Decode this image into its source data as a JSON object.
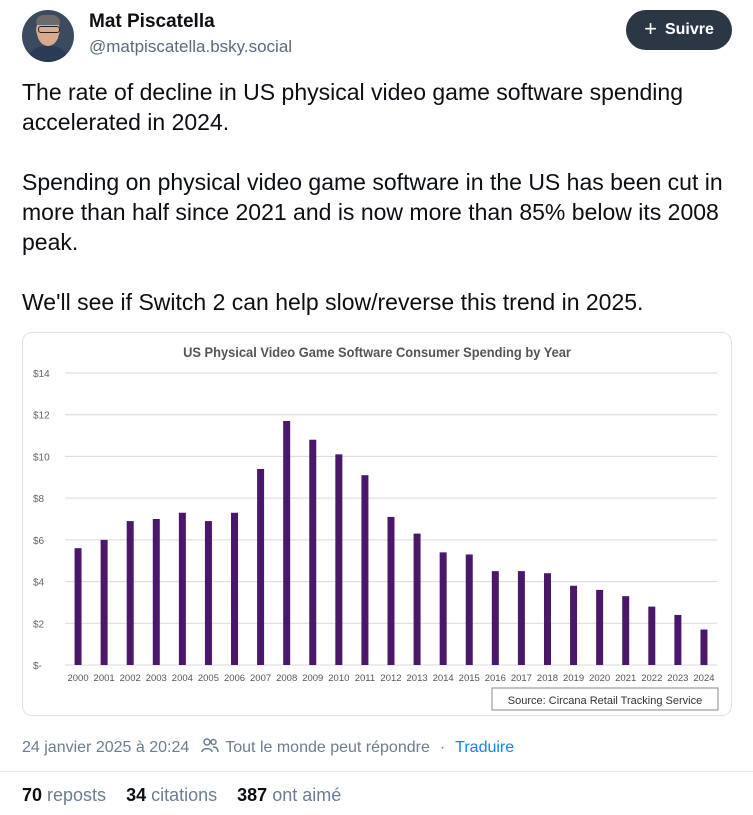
{
  "author": {
    "name": "Mat Piscatella",
    "handle": "@matpiscatella.bsky.social"
  },
  "follow_button": {
    "icon": "plus-icon",
    "label": "Suivre"
  },
  "post": {
    "paragraphs": [
      "The rate of decline in US physical video game software spending accelerated in 2024.",
      "Spending on physical video game software in the US has been cut in more than half since 2021 and is now more than 85% below its 2008 peak.",
      "We'll see if Switch 2 can help slow/reverse this trend in 2025."
    ]
  },
  "chart_data": {
    "type": "bar",
    "title": "US Physical Video Game Software Consumer Spending by Year",
    "categories": [
      "2000",
      "2001",
      "2002",
      "2003",
      "2004",
      "2005",
      "2006",
      "2007",
      "2008",
      "2009",
      "2010",
      "2011",
      "2012",
      "2013",
      "2014",
      "2015",
      "2016",
      "2017",
      "2018",
      "2019",
      "2020",
      "2021",
      "2022",
      "2023",
      "2024"
    ],
    "values": [
      5.6,
      6.0,
      6.9,
      7.0,
      7.3,
      6.9,
      7.3,
      9.4,
      11.7,
      10.8,
      10.1,
      9.1,
      7.1,
      6.3,
      5.4,
      5.3,
      4.5,
      4.5,
      4.4,
      3.8,
      3.6,
      3.3,
      2.8,
      2.4,
      1.7
    ],
    "ylim": [
      0,
      14
    ],
    "ytick_values": [
      0,
      2,
      4,
      6,
      8,
      10,
      12,
      14
    ],
    "ytick_labels": [
      "$-",
      "$2",
      "$4",
      "$6",
      "$8",
      "$10",
      "$12",
      "$14"
    ],
    "grid": true,
    "bar_color": "#4b176b",
    "source_note": "Source: Circana Retail Tracking Service",
    "source_note_position": "bottom-right"
  },
  "meta": {
    "timestamp": "24 janvier 2025 à 20:24",
    "reply_icon": "people-icon",
    "reply_setting": "Tout le monde peut répondre",
    "separator": "·",
    "translate": "Traduire"
  },
  "stats": {
    "reposts_count": "70",
    "reposts_label": "reposts",
    "quotes_count": "34",
    "quotes_label": "citations",
    "likes_count": "387",
    "likes_label": "ont aimé"
  }
}
